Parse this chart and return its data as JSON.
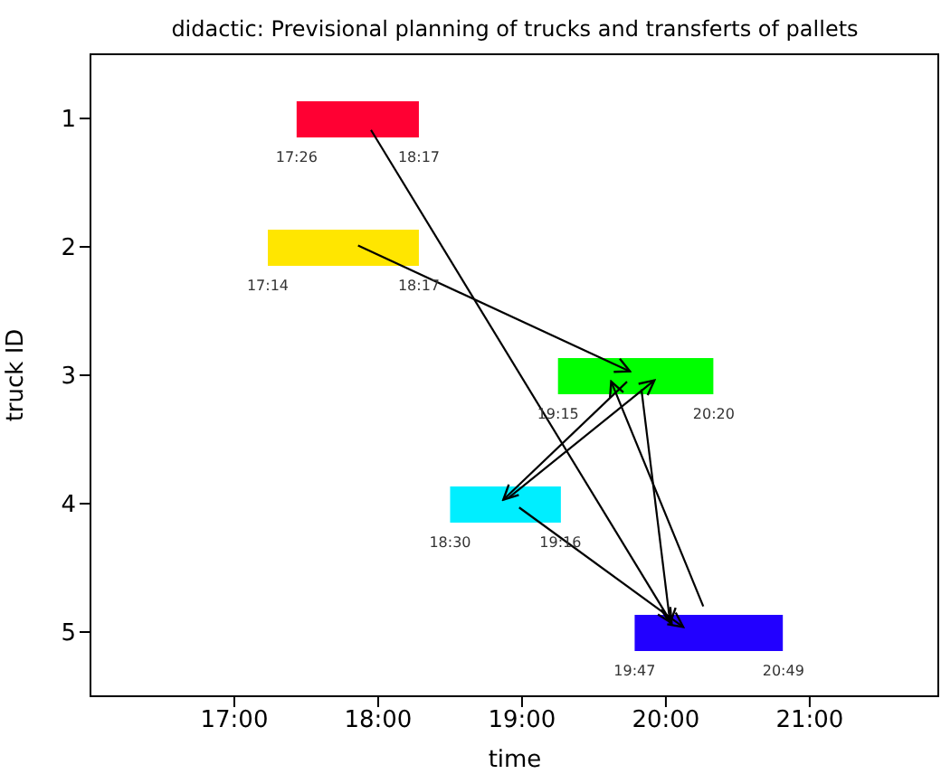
{
  "chart_data": {
    "type": "bar",
    "orientation": "horizontal",
    "title": "didactic: Previsional planning of trucks and transferts of pallets",
    "xlabel": "time",
    "ylabel": "truck ID",
    "categories": [
      "1",
      "2",
      "3",
      "4",
      "5"
    ],
    "base": [
      17.433,
      17.233,
      19.25,
      18.5,
      19.783
    ],
    "values": [
      0.85,
      1.05,
      1.08,
      0.77,
      1.03
    ],
    "colors": [
      "#ff0033",
      "#ffe600",
      "#00ff00",
      "#00eeff",
      "#2200ff"
    ],
    "xlim": [
      16,
      21.9
    ],
    "xticks": [
      {
        "value": 17,
        "label": "17:00"
      },
      {
        "value": 18,
        "label": "18:00"
      },
      {
        "value": 19,
        "label": "19:00"
      },
      {
        "value": 20,
        "label": "20:00"
      },
      {
        "value": 21,
        "label": "21:00"
      }
    ],
    "annotations": [
      {
        "text": "17:26",
        "x": 17.433,
        "y": "1"
      },
      {
        "text": "18:17",
        "x": 18.283,
        "y": "1"
      },
      {
        "text": "17:14",
        "x": 17.233,
        "y": "2"
      },
      {
        "text": "18:17",
        "x": 18.283,
        "y": "2"
      },
      {
        "text": "19:15",
        "x": 19.25,
        "y": "3"
      },
      {
        "text": "20:20",
        "x": 20.333,
        "y": "3"
      },
      {
        "text": "18:30",
        "x": 18.5,
        "y": "4"
      },
      {
        "text": "19:16",
        "x": 19.267,
        "y": "4"
      },
      {
        "text": "19:47",
        "x": 19.783,
        "y": "5"
      },
      {
        "text": "20:49",
        "x": 20.817,
        "y": "5"
      }
    ],
    "tick_labels": "xy"
  }
}
